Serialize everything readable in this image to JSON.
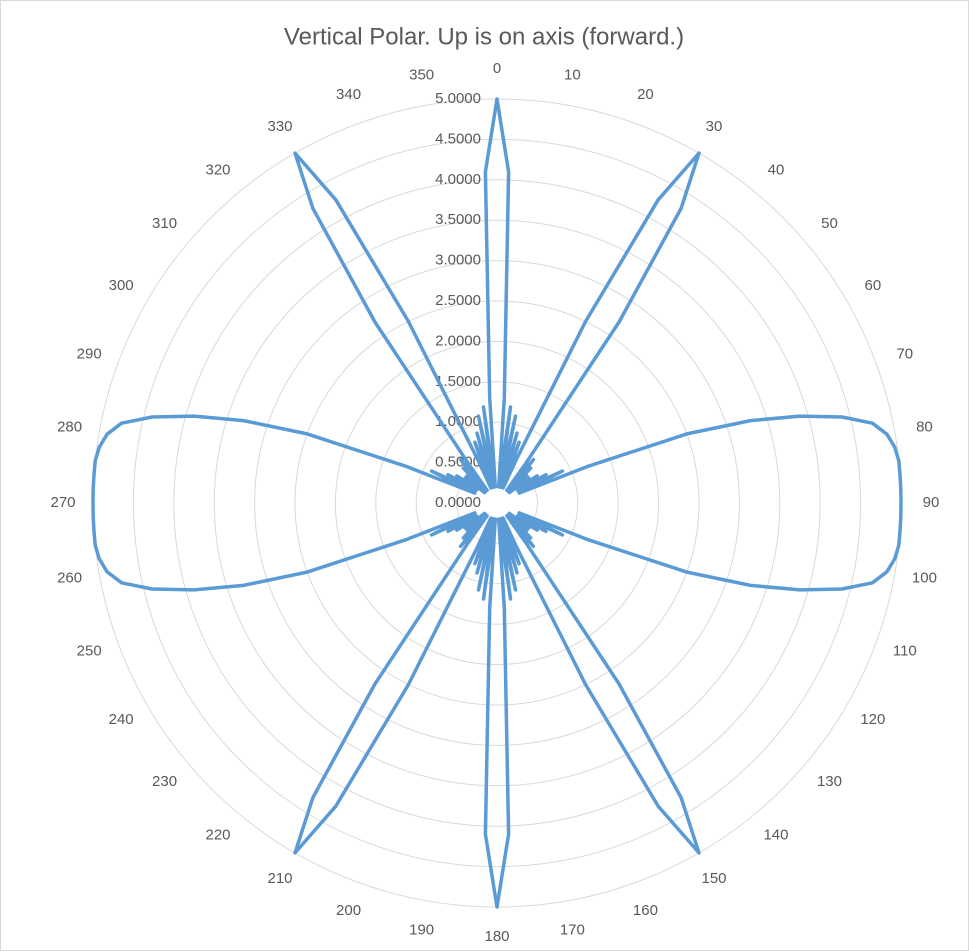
{
  "chart_data": {
    "type": "radar",
    "title": "Vertical Polar.  Up is on axis (forward.)",
    "categories": [
      "0",
      null,
      null,
      null,
      null,
      "10",
      null,
      null,
      null,
      null,
      "20",
      null,
      null,
      null,
      null,
      "30",
      null,
      null,
      null,
      null,
      "40",
      null,
      null,
      null,
      null,
      "50",
      null,
      null,
      null,
      null,
      "60",
      null,
      null,
      null,
      null,
      "70",
      null,
      null,
      null,
      null,
      "80",
      null,
      null,
      null,
      null,
      "90",
      null,
      null,
      null,
      null,
      "100",
      null,
      null,
      null,
      null,
      "110",
      null,
      null,
      null,
      null,
      "120",
      null,
      null,
      null,
      null,
      "130",
      null,
      null,
      null,
      null,
      "140",
      null,
      null,
      null,
      null,
      "150",
      null,
      null,
      null,
      null,
      "160",
      null,
      null,
      null,
      null,
      "170",
      null,
      null,
      null,
      null,
      "180",
      null,
      null,
      null,
      null,
      "190",
      null,
      null,
      null,
      null,
      "200",
      null,
      null,
      null,
      null,
      "210",
      null,
      null,
      null,
      null,
      "220",
      null,
      null,
      null,
      null,
      "230",
      null,
      null,
      null,
      null,
      "240",
      null,
      null,
      null,
      null,
      "250",
      null,
      null,
      null,
      null,
      "260",
      null,
      null,
      null,
      null,
      "270",
      null,
      null,
      null,
      null,
      "280",
      null,
      null,
      null,
      null,
      "290",
      null,
      null,
      null,
      null,
      "300",
      null,
      null,
      null,
      null,
      "310",
      null,
      null,
      null,
      null,
      "320",
      null,
      null,
      null,
      null,
      "330",
      null,
      null,
      null,
      null,
      "340",
      null,
      null,
      null,
      null,
      "350",
      null,
      null,
      null,
      null
    ],
    "values": [
      5.0,
      4.1,
      1.3,
      0.2,
      1.2,
      0.3,
      1.1,
      0.2,
      0.9,
      0.3,
      0.8,
      0.2,
      0.6,
      2.5,
      4.25,
      5.0,
      4.3,
      2.7,
      0.6,
      0.2,
      0.7,
      0.3,
      0.6,
      0.2,
      0.5,
      0.2,
      0.5,
      0.3,
      0.6,
      0.3,
      0.7,
      0.4,
      0.9,
      0.3,
      1.2,
      2.5,
      3.3,
      3.9,
      4.4,
      4.75,
      4.9,
      4.97,
      5.0,
      5.0,
      5.0,
      5.0,
      5.0,
      5.0,
      5.0,
      4.97,
      4.9,
      4.75,
      4.4,
      3.9,
      3.3,
      2.5,
      1.2,
      0.3,
      0.9,
      0.4,
      0.7,
      0.3,
      0.6,
      0.3,
      0.5,
      0.2,
      0.5,
      0.2,
      0.6,
      0.3,
      0.7,
      0.2,
      0.6,
      2.7,
      4.3,
      5.0,
      4.25,
      2.5,
      0.6,
      0.2,
      0.8,
      0.3,
      0.9,
      0.2,
      1.1,
      0.3,
      1.2,
      0.2,
      1.3,
      4.1,
      5.0,
      4.1,
      1.3,
      0.2,
      1.2,
      0.3,
      1.1,
      0.2,
      0.9,
      0.3,
      0.8,
      0.2,
      0.6,
      2.5,
      4.25,
      5.0,
      4.3,
      2.7,
      0.6,
      0.2,
      0.7,
      0.3,
      0.6,
      0.2,
      0.5,
      0.2,
      0.5,
      0.3,
      0.6,
      0.3,
      0.7,
      0.4,
      0.9,
      0.3,
      1.2,
      2.5,
      3.3,
      3.9,
      4.4,
      4.75,
      4.9,
      4.97,
      5.0,
      5.0,
      5.0,
      5.0,
      5.0,
      5.0,
      5.0,
      4.97,
      4.9,
      4.75,
      4.4,
      3.9,
      3.3,
      2.5,
      1.2,
      0.3,
      0.9,
      0.4,
      0.7,
      0.3,
      0.6,
      0.3,
      0.5,
      0.2,
      0.5,
      0.2,
      0.6,
      0.3,
      0.7,
      0.2,
      0.6,
      2.7,
      4.3,
      5.0,
      4.25,
      2.5,
      0.6,
      0.2,
      0.8,
      0.3,
      0.9,
      0.2,
      1.1,
      0.3,
      1.2,
      0.2,
      1.3,
      4.1
    ],
    "color": "#5b9bd5",
    "ylim": [
      0,
      5
    ],
    "yticks": [
      {
        "value": 0,
        "label": "0.0000"
      },
      {
        "value": 0.5,
        "label": "0.5000"
      },
      {
        "value": 1,
        "label": "1.0000"
      },
      {
        "value": 1.5,
        "label": "1.5000"
      },
      {
        "value": 2,
        "label": "2.0000"
      },
      {
        "value": 2.5,
        "label": "2.5000"
      },
      {
        "value": 3,
        "label": "3.0000"
      },
      {
        "value": 3.5,
        "label": "3.5000"
      },
      {
        "value": 4,
        "label": "4.0000"
      },
      {
        "value": 4.5,
        "label": "4.5000"
      },
      {
        "value": 5,
        "label": "5.0000"
      }
    ],
    "grid": true
  }
}
